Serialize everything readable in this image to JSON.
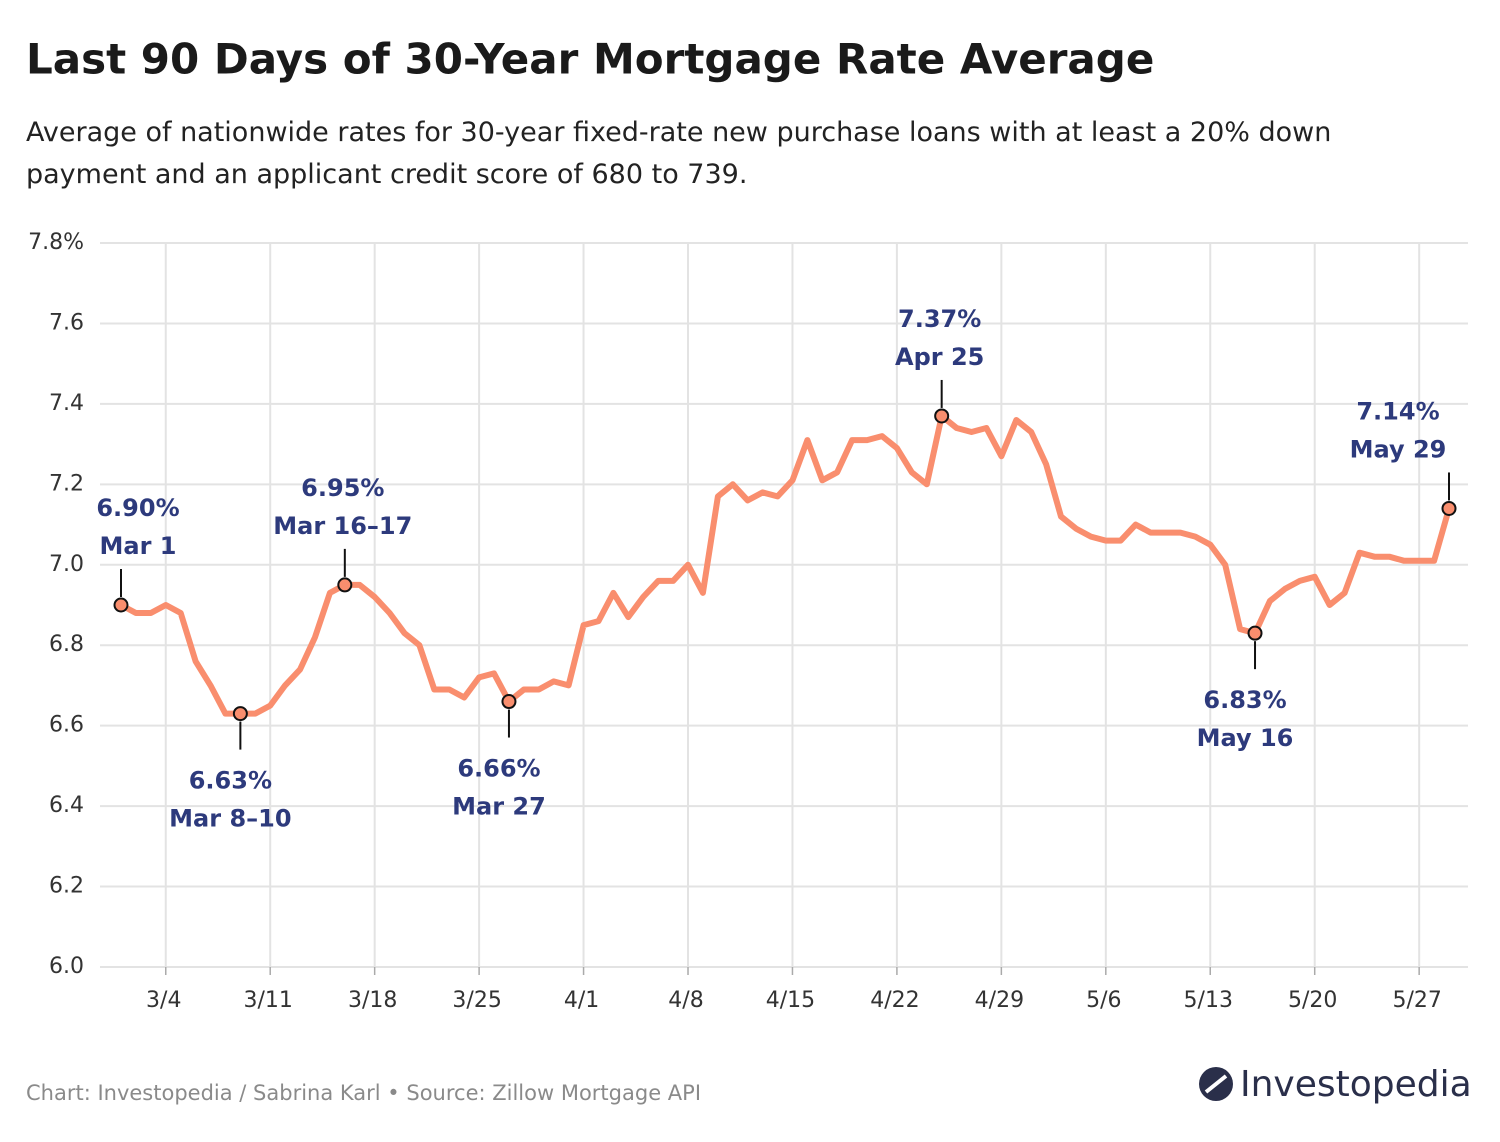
{
  "chart_data": {
    "type": "line",
    "title": "Last 90 Days of 30-Year Mortgage Rate Average",
    "subtitle": "Average of nationwide rates for 30-year fixed-rate new purchase loans with at least a 20% down payment and an applicant credit score of 680 to 739.",
    "x": [
      "3/1",
      "3/2",
      "3/3",
      "3/4",
      "3/5",
      "3/6",
      "3/7",
      "3/8",
      "3/9",
      "3/10",
      "3/11",
      "3/12",
      "3/13",
      "3/14",
      "3/15",
      "3/16",
      "3/17",
      "3/18",
      "3/19",
      "3/20",
      "3/21",
      "3/22",
      "3/23",
      "3/24",
      "3/25",
      "3/26",
      "3/27",
      "3/28",
      "3/29",
      "3/30",
      "3/31",
      "4/1",
      "4/2",
      "4/3",
      "4/4",
      "4/5",
      "4/6",
      "4/7",
      "4/8",
      "4/9",
      "4/10",
      "4/11",
      "4/12",
      "4/13",
      "4/14",
      "4/15",
      "4/16",
      "4/17",
      "4/18",
      "4/19",
      "4/20",
      "4/21",
      "4/22",
      "4/23",
      "4/24",
      "4/25",
      "4/26",
      "4/27",
      "4/28",
      "4/29",
      "4/30",
      "5/1",
      "5/2",
      "5/3",
      "5/4",
      "5/5",
      "5/6",
      "5/7",
      "5/8",
      "5/9",
      "5/10",
      "5/11",
      "5/12",
      "5/13",
      "5/14",
      "5/15",
      "5/16",
      "5/17",
      "5/18",
      "5/19",
      "5/20",
      "5/21",
      "5/22",
      "5/23",
      "5/24",
      "5/25",
      "5/26",
      "5/27",
      "5/28",
      "5/29"
    ],
    "values": [
      6.9,
      6.88,
      6.88,
      6.9,
      6.88,
      6.76,
      6.7,
      6.63,
      6.63,
      6.63,
      6.65,
      6.7,
      6.74,
      6.82,
      6.93,
      6.95,
      6.95,
      6.92,
      6.88,
      6.83,
      6.8,
      6.69,
      6.69,
      6.67,
      6.72,
      6.73,
      6.66,
      6.69,
      6.69,
      6.71,
      6.7,
      6.85,
      6.86,
      6.93,
      6.87,
      6.92,
      6.96,
      6.96,
      7.0,
      6.93,
      7.17,
      7.2,
      7.16,
      7.18,
      7.17,
      7.21,
      7.31,
      7.21,
      7.23,
      7.31,
      7.31,
      7.32,
      7.29,
      7.23,
      7.2,
      7.37,
      7.34,
      7.33,
      7.34,
      7.27,
      7.36,
      7.33,
      7.25,
      7.12,
      7.09,
      7.07,
      7.06,
      7.06,
      7.1,
      7.08,
      7.08,
      7.08,
      7.07,
      7.05,
      7.0,
      6.84,
      6.83,
      6.91,
      6.94,
      6.96,
      6.97,
      6.9,
      6.93,
      7.03,
      7.02,
      7.02,
      7.01,
      7.01,
      7.01,
      7.14
    ],
    "color": "#f98e6e",
    "ylim": [
      6.0,
      7.8
    ],
    "yticks": [
      {
        "value": 6,
        "label": "6.0"
      },
      6.2,
      6.4,
      6.6,
      6.8,
      {
        "value": 7,
        "label": "7.0"
      },
      7.2,
      7.4,
      7.6,
      {
        "value": 7.8,
        "label": "7.8%"
      }
    ],
    "xticks": [
      "3/4",
      "3/11",
      "3/18",
      "3/25",
      "4/1",
      "4/8",
      "4/15",
      "4/22",
      "4/29",
      "5/6",
      "5/13",
      "5/20",
      "5/27"
    ],
    "grid": true,
    "annotations": [
      {
        "x": "3/1",
        "value": 6.9,
        "value_label": "6.90%",
        "text": "Mar 1"
      },
      {
        "x": "3/9",
        "value": 6.63,
        "value_label": "6.63%",
        "text": "Mar 8–10"
      },
      {
        "x": "3/16",
        "value": 6.95,
        "value_label": "6.95%",
        "text": "Mar 16–17"
      },
      {
        "x": "3/27",
        "value": 6.66,
        "value_label": "6.66%",
        "text": "Mar 27"
      },
      {
        "x": "4/25",
        "value": 7.37,
        "value_label": "7.37%",
        "text": "Apr 25"
      },
      {
        "x": "5/16",
        "value": 6.83,
        "value_label": "6.83%",
        "text": "May 16"
      },
      {
        "x": "5/29",
        "value": 7.14,
        "value_label": "7.14%",
        "text": "May 29"
      }
    ],
    "source": "Chart: Investopedia / Sabrina Karl • Source: Zillow Mortgage API",
    "brand": "Investopedia"
  }
}
